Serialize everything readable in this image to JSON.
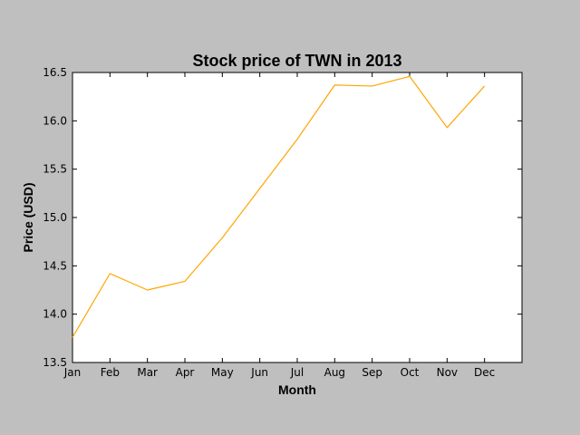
{
  "chart_data": {
    "type": "line",
    "title": "Stock price of TWN in 2013",
    "xlabel": "Month",
    "ylabel": "Price (USD)",
    "categories": [
      "Jan",
      "Feb",
      "Mar",
      "Apr",
      "May",
      "Jun",
      "Jul",
      "Aug",
      "Sep",
      "Oct",
      "Nov",
      "Dec"
    ],
    "series": [
      {
        "name": "",
        "color": "#ffa500",
        "values": [
          13.76,
          14.42,
          14.25,
          14.34,
          14.79,
          15.3,
          15.81,
          16.37,
          16.36,
          16.46,
          15.93,
          16.36
        ]
      }
    ],
    "ylim": [
      13.5,
      16.5
    ],
    "yticks": [
      13.5,
      14.0,
      14.5,
      15.0,
      15.5,
      16.0,
      16.5
    ],
    "ytick_labels": [
      "13.5",
      "14.0",
      "14.5",
      "15.0",
      "15.5",
      "16.0",
      "16.5"
    ],
    "xlim": [
      0,
      12
    ],
    "grid": false,
    "legend": "none"
  }
}
